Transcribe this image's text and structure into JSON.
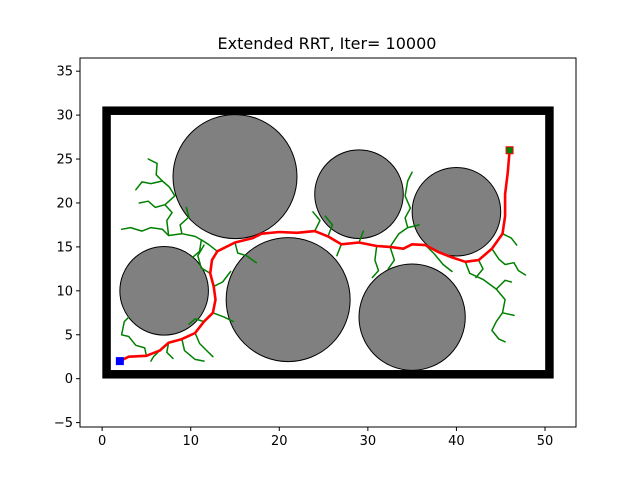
{
  "chart_data": {
    "type": "scatter",
    "title": "Extended RRT, Iter= 10000",
    "xlabel": "",
    "ylabel": "",
    "xlim": [
      -2.5,
      53.5
    ],
    "ylim": [
      -5.5,
      36.5
    ],
    "x_ticks": [
      0,
      10,
      20,
      30,
      40,
      50
    ],
    "y_ticks": [
      -5,
      0,
      5,
      10,
      15,
      20,
      25,
      30,
      35
    ],
    "grid": false,
    "legend": "none",
    "colors": {
      "boundary": "#000000",
      "obstacle_fill": "#808080",
      "obstacle_edge": "#000000",
      "tree": "#008000",
      "path": "#ff0000",
      "start": "#0000ff",
      "goal": "#008000",
      "goal_edge": "#ff0000"
    },
    "boundary": {
      "xmin": 0.5,
      "xmax": 50.5,
      "ymin": 0.5,
      "ymax": 30.5
    },
    "obstacles": [
      {
        "cx": 15,
        "cy": 23,
        "r": 7
      },
      {
        "cx": 29,
        "cy": 21,
        "r": 5
      },
      {
        "cx": 40,
        "cy": 19,
        "r": 5
      },
      {
        "cx": 7,
        "cy": 10,
        "r": 5
      },
      {
        "cx": 21,
        "cy": 9,
        "r": 7
      },
      {
        "cx": 35,
        "cy": 7,
        "r": 6
      }
    ],
    "start": {
      "x": 2,
      "y": 2
    },
    "goal": {
      "x": 46,
      "y": 26
    },
    "path": [
      [
        2,
        2
      ],
      [
        3,
        2.5
      ],
      [
        5,
        2.6
      ],
      [
        6.5,
        3.2
      ],
      [
        7.5,
        4.1
      ],
      [
        9,
        4.5
      ],
      [
        10.5,
        5.2
      ],
      [
        11.5,
        6.5
      ],
      [
        12.5,
        7.5
      ],
      [
        12.8,
        9
      ],
      [
        12.6,
        10.5
      ],
      [
        12.2,
        12
      ],
      [
        12.4,
        13.5
      ],
      [
        13,
        14.5
      ],
      [
        15,
        15.5
      ],
      [
        17,
        16
      ],
      [
        18,
        16.5
      ],
      [
        20,
        16.7
      ],
      [
        22,
        16.6
      ],
      [
        24,
        16.8
      ],
      [
        25.5,
        16.2
      ],
      [
        27,
        15.3
      ],
      [
        29,
        15.5
      ],
      [
        31,
        15.1
      ],
      [
        32.5,
        15
      ],
      [
        34,
        14.8
      ],
      [
        35,
        15.3
      ],
      [
        36.5,
        15.2
      ],
      [
        38,
        14.4
      ],
      [
        39.5,
        13.8
      ],
      [
        41,
        13.3
      ],
      [
        42.5,
        13.5
      ],
      [
        44,
        14.8
      ],
      [
        45.2,
        16.5
      ],
      [
        45.5,
        18.5
      ],
      [
        45.5,
        21
      ],
      [
        45.8,
        23.5
      ],
      [
        46,
        26
      ]
    ],
    "tree_branches": [
      [
        [
          11.5,
          6.5
        ],
        [
          10.5,
          6.8
        ],
        [
          9.8,
          6.2
        ]
      ],
      [
        [
          10.5,
          5.2
        ],
        [
          11,
          4
        ],
        [
          11.8,
          3.2
        ],
        [
          12.5,
          2.5
        ]
      ],
      [
        [
          9,
          4.5
        ],
        [
          9.3,
          3.2
        ],
        [
          10.5,
          2.2
        ],
        [
          11.5,
          2
        ]
      ],
      [
        [
          7.5,
          4.1
        ],
        [
          7.3,
          3
        ],
        [
          8,
          2.3
        ]
      ],
      [
        [
          5,
          2.6
        ],
        [
          4.8,
          3.5
        ],
        [
          3.8,
          3.8
        ],
        [
          3,
          4.8
        ],
        [
          2.2,
          5
        ],
        [
          2.5,
          6.5
        ],
        [
          3,
          7
        ]
      ],
      [
        [
          6.5,
          3.2
        ],
        [
          5.8,
          2.5
        ],
        [
          5.5,
          2
        ]
      ],
      [
        [
          12.5,
          7.5
        ],
        [
          13.8,
          7
        ],
        [
          14.8,
          6.5
        ]
      ],
      [
        [
          12.6,
          10.5
        ],
        [
          13.6,
          11
        ],
        [
          14.5,
          12.2
        ]
      ],
      [
        [
          12.2,
          12
        ],
        [
          11.2,
          12.6
        ],
        [
          10.8,
          14
        ],
        [
          11.5,
          15.2
        ]
      ],
      [
        [
          13,
          14.5
        ],
        [
          12,
          15.3
        ],
        [
          11.2,
          15.8
        ],
        [
          10.5,
          16.2
        ],
        [
          9,
          16.5
        ],
        [
          7.5,
          16.3
        ],
        [
          6.8,
          17
        ],
        [
          5.5,
          17.2
        ],
        [
          4.5,
          16.8
        ],
        [
          3.2,
          17.2
        ],
        [
          2.2,
          17
        ]
      ],
      [
        [
          7.5,
          16.3
        ],
        [
          7.3,
          18
        ],
        [
          7.9,
          18.9
        ],
        [
          7.1,
          19.8
        ],
        [
          8.2,
          20.8
        ],
        [
          7.6,
          21.8
        ],
        [
          6.8,
          22.5
        ],
        [
          6.1,
          23.2
        ],
        [
          6.2,
          24.5
        ],
        [
          5.2,
          25
        ]
      ],
      [
        [
          6.8,
          22.5
        ],
        [
          5.5,
          22.2
        ],
        [
          4.5,
          22.4
        ],
        [
          3.8,
          21.5
        ]
      ],
      [
        [
          7.1,
          19.8
        ],
        [
          6,
          19.5
        ],
        [
          5.2,
          20.2
        ],
        [
          4.2,
          20
        ]
      ],
      [
        [
          9,
          16.5
        ],
        [
          8.8,
          17.5
        ],
        [
          9.8,
          18.4
        ],
        [
          9.5,
          19.5
        ]
      ],
      [
        [
          15,
          15.5
        ],
        [
          15.3,
          14.3
        ],
        [
          16.3,
          14
        ],
        [
          17.4,
          13.2
        ]
      ],
      [
        [
          11.2,
          15.8
        ],
        [
          11,
          14.5
        ],
        [
          10.2,
          13.8
        ]
      ],
      [
        [
          24,
          16.8
        ],
        [
          24.6,
          18
        ],
        [
          23.8,
          19
        ]
      ],
      [
        [
          25.5,
          16.2
        ],
        [
          26,
          17.5
        ],
        [
          25.2,
          18.5
        ]
      ],
      [
        [
          29,
          15.5
        ],
        [
          29.5,
          16.8
        ]
      ],
      [
        [
          27,
          15.3
        ],
        [
          26.5,
          14
        ]
      ],
      [
        [
          32.5,
          15
        ],
        [
          33.5,
          16.5
        ],
        [
          34.5,
          17.2
        ],
        [
          34.2,
          18.3
        ],
        [
          34.8,
          19.4
        ],
        [
          34.2,
          20.8
        ],
        [
          34.5,
          22.5
        ],
        [
          35,
          23.5
        ]
      ],
      [
        [
          34.5,
          17.2
        ],
        [
          35.8,
          17.5
        ]
      ],
      [
        [
          31,
          15.1
        ],
        [
          30.8,
          13.5
        ],
        [
          31.2,
          12.3
        ],
        [
          30.5,
          11.5
        ]
      ],
      [
        [
          36.5,
          15.2
        ],
        [
          37.5,
          14.2
        ],
        [
          38.5,
          13
        ],
        [
          39.5,
          12.2
        ]
      ],
      [
        [
          42.5,
          13.5
        ],
        [
          43,
          12.5
        ],
        [
          42.2,
          11.5
        ]
      ],
      [
        [
          44,
          14.8
        ],
        [
          44.8,
          13.6
        ],
        [
          45.5,
          13
        ],
        [
          46.5,
          13.2
        ],
        [
          47,
          12.3
        ],
        [
          47.8,
          11.8
        ]
      ],
      [
        [
          45.2,
          16.5
        ],
        [
          46.2,
          16
        ],
        [
          46.8,
          15.2
        ]
      ],
      [
        [
          41,
          13.3
        ],
        [
          41.5,
          12
        ],
        [
          43,
          11.3
        ],
        [
          44.5,
          10.2
        ],
        [
          45.5,
          9
        ],
        [
          45.2,
          7.5
        ],
        [
          44.5,
          6.5
        ],
        [
          44,
          5.5
        ],
        [
          44.8,
          4.5
        ],
        [
          45.5,
          4.2
        ]
      ],
      [
        [
          44.5,
          10.2
        ],
        [
          45.5,
          11.2
        ],
        [
          46.2,
          11
        ]
      ],
      [
        [
          45.2,
          7.5
        ],
        [
          46.5,
          7.2
        ]
      ],
      [
        [
          32.5,
          15
        ],
        [
          33,
          13.5
        ],
        [
          32.3,
          12.5
        ]
      ]
    ]
  }
}
